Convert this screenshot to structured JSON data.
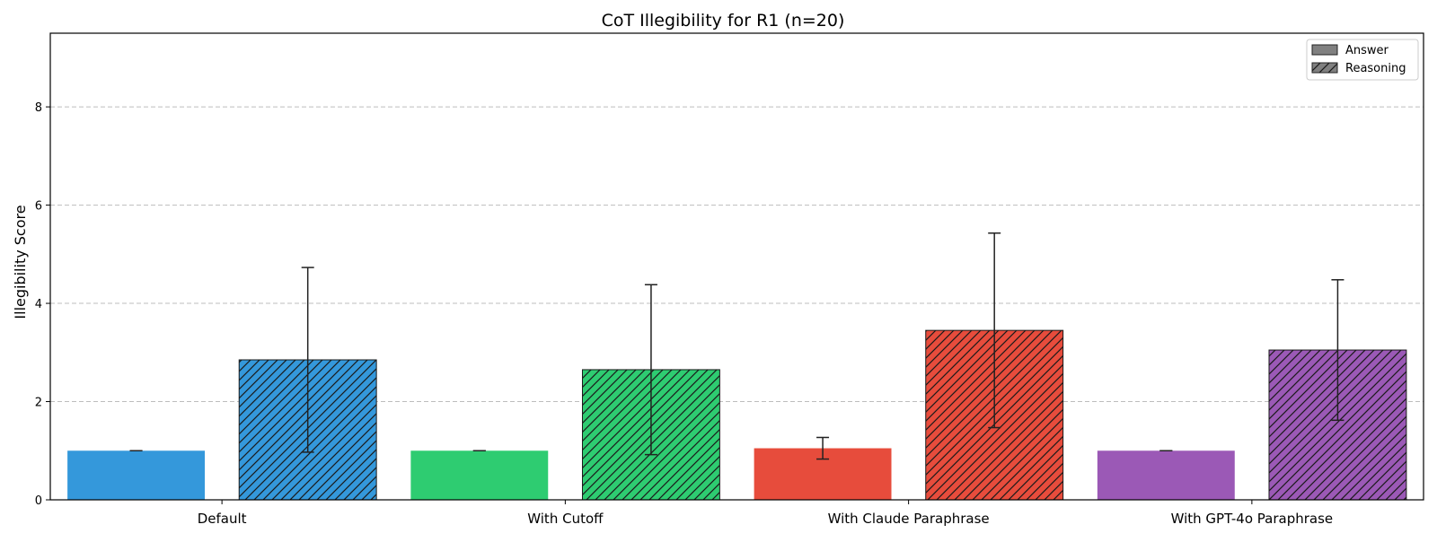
{
  "chart_data": {
    "type": "bar",
    "title": "CoT Illegibility for R1 (n=20)",
    "xlabel": "",
    "ylabel": "Illegibility Score",
    "ylim": [
      0,
      9.5
    ],
    "yticks": [
      0,
      2,
      4,
      6,
      8
    ],
    "grid": "y, dashed",
    "legend_position": "top-right",
    "categories": [
      "Default",
      "With Cutoff",
      "With Claude Paraphrase",
      "With GPT-4o Paraphrase"
    ],
    "category_colors": [
      "#3498db",
      "#2ecc71",
      "#e74c3c",
      "#9b59b6"
    ],
    "series": [
      {
        "name": "Answer",
        "pattern": "solid",
        "values": [
          1.0,
          1.0,
          1.05,
          1.0
        ],
        "errors": [
          0.0,
          0.0,
          0.22,
          0.0
        ]
      },
      {
        "name": "Reasoning",
        "pattern": "hatched",
        "values": [
          2.85,
          2.65,
          3.45,
          3.05
        ],
        "errors": [
          1.88,
          1.73,
          1.98,
          1.43
        ]
      }
    ]
  }
}
